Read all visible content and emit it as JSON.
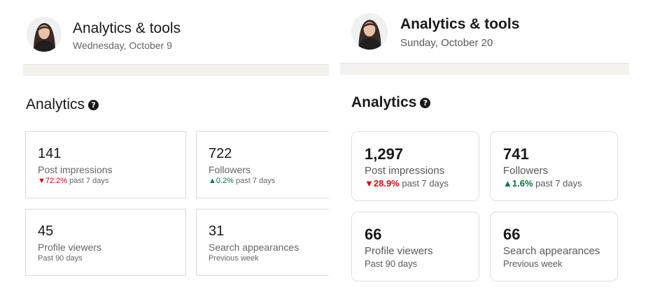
{
  "left": {
    "header": {
      "title": "Analytics & tools",
      "date": "Wednesday, October 9"
    },
    "section_title": "Analytics",
    "help_icon": "?",
    "cards": [
      {
        "value": "141",
        "label": "Post impressions",
        "change": "72.2%",
        "change_dir": "down",
        "change_arrow": "▼",
        "period": "past 7 days"
      },
      {
        "value": "722",
        "label": "Followers",
        "change": "0.2%",
        "change_dir": "up",
        "change_arrow": "▲",
        "period": "past 7 days"
      },
      {
        "value": "45",
        "label": "Profile viewers",
        "period": "Past 90 days"
      },
      {
        "value": "31",
        "label": "Search appearances",
        "period": "Previous week"
      }
    ]
  },
  "right": {
    "header": {
      "title": "Analytics & tools",
      "date": "Sunday, October 20"
    },
    "section_title": "Analytics",
    "help_icon": "?",
    "cards": [
      {
        "value": "1,297",
        "label": "Post impressions",
        "change": "28.9%",
        "change_dir": "down",
        "change_arrow": "▼",
        "period": "past 7 days"
      },
      {
        "value": "741",
        "label": "Followers",
        "change": "1.6%",
        "change_dir": "up",
        "change_arrow": "▲",
        "period": "past 7 days"
      },
      {
        "value": "66",
        "label": "Profile viewers",
        "period": "Past 90 days"
      },
      {
        "value": "66",
        "label": "Search appearances",
        "period": "Previous week"
      }
    ]
  },
  "colors": {
    "down": "#cc1016",
    "up": "#057642",
    "divider": "#f4f2ee",
    "text_primary": "#191919",
    "text_secondary": "#666666"
  },
  "icons": {
    "avatar": "profile-photo",
    "help": "question-circle-icon",
    "down": "triangle-down-icon",
    "up": "triangle-up-icon"
  }
}
